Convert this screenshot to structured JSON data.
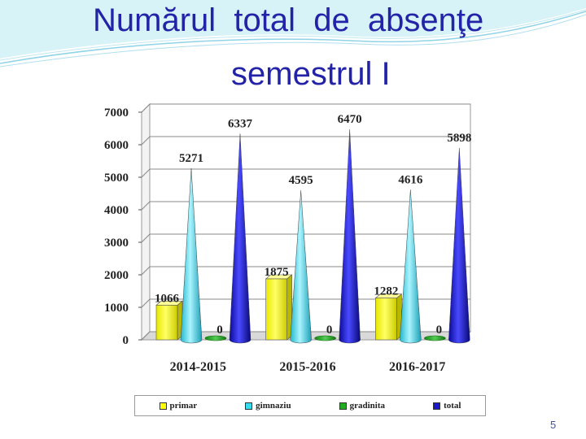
{
  "slide": {
    "title_line1": "Numărul  total  de  absenţe",
    "title_line2": "semestrul I",
    "slide_number": "5"
  },
  "colors": {
    "title": "#2323a8",
    "primar": "#ffff00",
    "gimnaziu": "#33ddee",
    "gradinita": "#22aa22",
    "total": "#1a1acc"
  },
  "chart_data": {
    "type": "bar",
    "style": "3d-columns-and-cones",
    "categories": [
      "2014-2015",
      "2015-2016",
      "2016-2017"
    ],
    "series": [
      {
        "name": "primar",
        "values": [
          1066,
          1875,
          1282
        ],
        "labels": [
          "1066",
          "1875",
          "1282"
        ]
      },
      {
        "name": "gimnaziu",
        "values": [
          5271,
          4595,
          4616
        ],
        "labels": [
          "5271",
          "4595",
          "4616"
        ]
      },
      {
        "name": "gradinita",
        "values": [
          0,
          0,
          0
        ],
        "labels": [
          "0",
          "0",
          "0"
        ]
      },
      {
        "name": "total",
        "values": [
          6337,
          6470,
          5898
        ],
        "labels": [
          "6337",
          "6470",
          "5898"
        ]
      }
    ],
    "ylim": [
      0,
      7000
    ],
    "yticks": [
      "0",
      "1000",
      "2000",
      "3000",
      "4000",
      "5000",
      "6000",
      "7000"
    ],
    "ytick_values": [
      0,
      1000,
      2000,
      3000,
      4000,
      5000,
      6000,
      7000
    ],
    "grid": true,
    "legend_position": "bottom"
  }
}
